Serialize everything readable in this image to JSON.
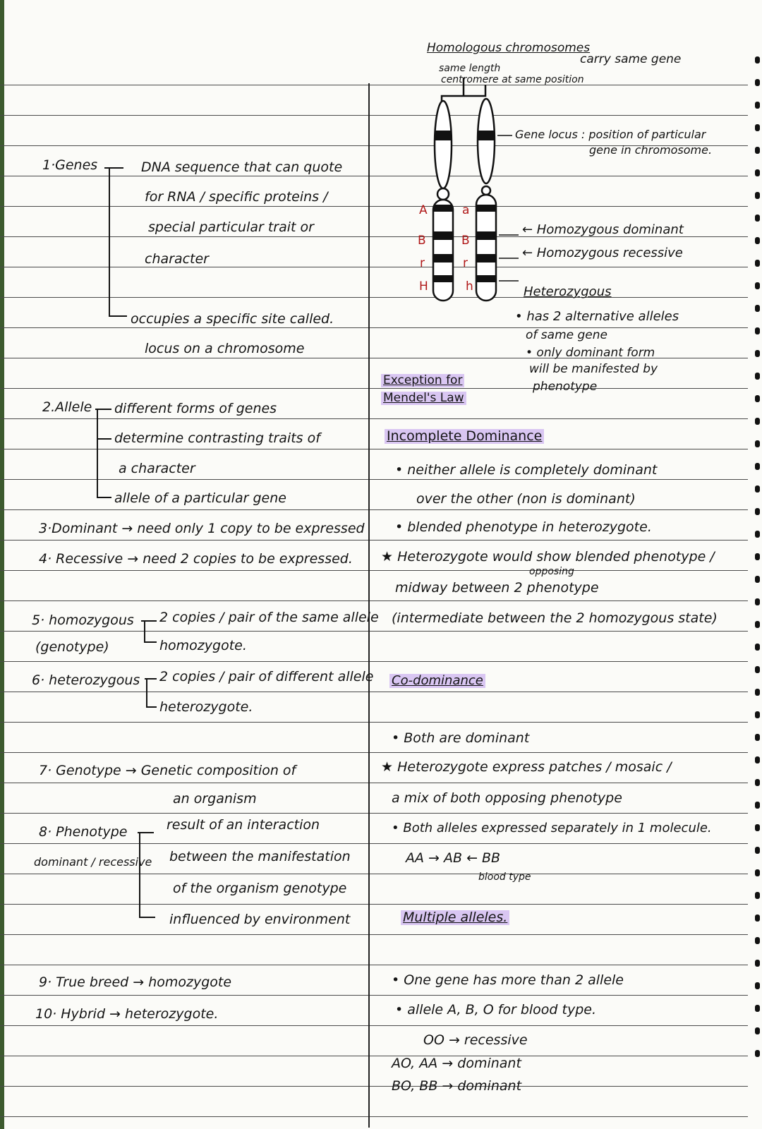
{
  "left": {
    "genes_label": "1·Genes",
    "genes_1": "DNA sequence that can quote",
    "genes_2": "for RNA / specific proteins /",
    "genes_3": "special particular trait or",
    "genes_4": "character",
    "genes_5": "occupies a specific site called.",
    "genes_6": "locus on a chromosome",
    "allele_label": "2.Allele",
    "allele_1": "different forms of genes",
    "allele_2": "determine contrasting traits of",
    "allele_3": "a character",
    "allele_4": "allele of a particular gene",
    "dominant": "3·Dominant → need only 1 copy to be expressed",
    "recessive": "4· Recessive → need 2 copies to be expressed.",
    "homo_label": "5· homozygous",
    "homo_sub": "(genotype)",
    "homo_1": "2 copies / pair of the same allele",
    "homo_2": "homozygote.",
    "hetero_label": "6· heterozygous",
    "hetero_1": "2 copies / pair of different allele",
    "hetero_2": "heterozygote.",
    "genotype_1": "7· Genotype → Genetic composition of",
    "genotype_2": "an organism",
    "pheno_label": "8· Phenotype",
    "pheno_sub": "dominant / recessive",
    "pheno_1": "result of an interaction",
    "pheno_2": "between the manifestation",
    "pheno_3": "of the organism genotype",
    "pheno_4": "influenced by environment",
    "true_breed": "9· True breed → homozygote",
    "hybrid": "10· Hybrid → heterozygote."
  },
  "right": {
    "homologous_title": "Homologous chromosomes",
    "carry_same_gene": "carry same gene",
    "same_length": "same length",
    "centromere": "centromere at same position",
    "gene_locus_1": "Gene locus : position of particular",
    "gene_locus_2": "gene in chromosome.",
    "alleles_left": [
      "A",
      "B",
      "r",
      "H"
    ],
    "alleles_right": [
      "a",
      "B",
      "r",
      "h"
    ],
    "homo_dominant": "← Homozygous dominant",
    "homo_recessive": "← Homozygous recessive",
    "heterozygous": "Heterozygous",
    "het_1": "• has 2 alternative alleles",
    "het_2": "of same gene",
    "het_3": "• only dominant form",
    "het_4": "will be manifested by",
    "het_5": "phenotype",
    "exception_1": "Exception for",
    "exception_2": "Mendel's Law",
    "incomplete_title": "Incomplete Dominance",
    "inc_1": "• neither allele is completely dominant",
    "inc_2": "over the other (non is dominant)",
    "inc_3": "• blended phenotype in heterozygote.",
    "inc_4": "★ Heterozygote would show blended phenotype /",
    "inc_opposing": "opposing",
    "inc_5": "midway between 2 phenotype",
    "inc_6": "(intermediate between the 2 homozygous state)",
    "codominance_title": "Co-dominance",
    "co_1": "• Both are dominant",
    "co_2": "★ Heterozygote express patches / mosaic /",
    "co_3": "a mix of both opposing phenotype",
    "co_4": "• Both alleles expressed separately in 1 molecule.",
    "co_5": "AA → AB ← BB",
    "co_6": "blood type",
    "multiple_title": "Multiple alleles.",
    "mul_1": "• One gene has more than 2 allele",
    "mul_2": "• allele A, B, O for blood type.",
    "mul_3": "OO → recessive",
    "mul_4": "AO, AA → dominant",
    "mul_5": "BO, BB → dominant"
  },
  "colors": {
    "ink": "#141414",
    "highlight": "#d9c6f2",
    "allele_red": "#b01818"
  }
}
